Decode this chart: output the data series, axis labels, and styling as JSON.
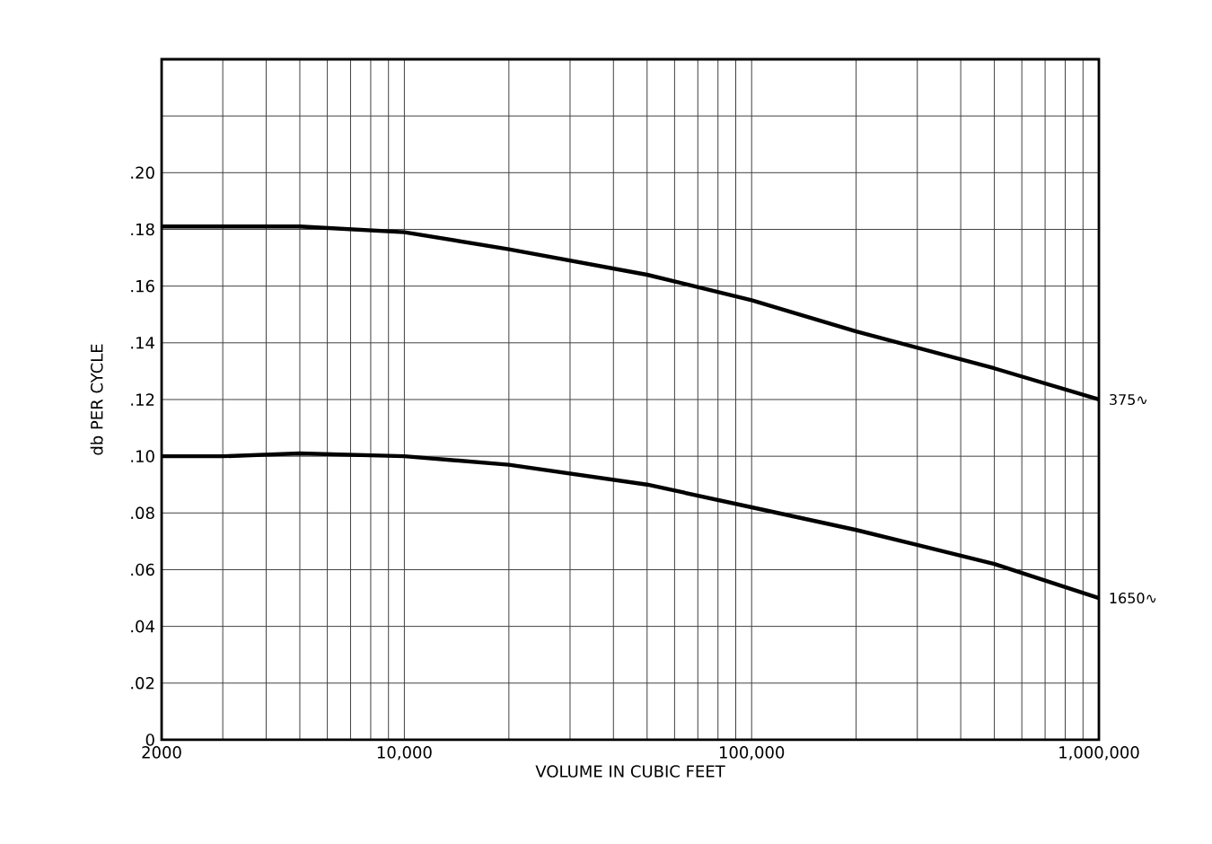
{
  "chart_data": {
    "type": "line",
    "xlabel": "VOLUME  IN  CUBIC  FEET",
    "ylabel": "db  PER  CYCLE",
    "log": "x",
    "grid": true,
    "marker": "none",
    "line_style": "solid",
    "xlim": [
      2000,
      1000000
    ],
    "ylim": [
      0,
      0.24
    ],
    "xticks": [
      2000,
      {
        "value": 10000,
        "label": "10,000"
      },
      {
        "value": 100000,
        "label": "100,000"
      },
      {
        "value": 1000000,
        "label": "1,000,000"
      }
    ],
    "yticks": [
      0,
      {
        "value": 0.02,
        "label": ".02"
      },
      {
        "value": 0.04,
        "label": ".04"
      },
      {
        "value": 0.06,
        "label": ".06"
      },
      {
        "value": 0.08,
        "label": ".08"
      },
      {
        "value": 0.1,
        "label": ".10"
      },
      {
        "value": 0.12,
        "label": ".12"
      },
      {
        "value": 0.14,
        "label": ".14"
      },
      {
        "value": 0.16,
        "label": ".16"
      },
      {
        "value": 0.18,
        "label": ".18"
      },
      {
        "value": 0.2,
        "label": ".20"
      },
      {
        "value": 0.22,
        "label": null
      },
      {
        "value": 0.24,
        "label": null
      }
    ],
    "x": [
      2000,
      3000,
      5000,
      10000,
      20000,
      50000,
      100000,
      200000,
      500000,
      1000000
    ],
    "series": [
      {
        "name": "375∿",
        "color": "#000000",
        "values": [
          0.181,
          0.181,
          0.181,
          0.179,
          0.173,
          0.164,
          0.155,
          0.144,
          0.131,
          0.12
        ]
      },
      {
        "name": "1650∿",
        "color": "#000000",
        "values": [
          0.1,
          0.1,
          0.101,
          0.1,
          0.097,
          0.09,
          0.082,
          0.074,
          0.062,
          0.05
        ]
      }
    ]
  }
}
